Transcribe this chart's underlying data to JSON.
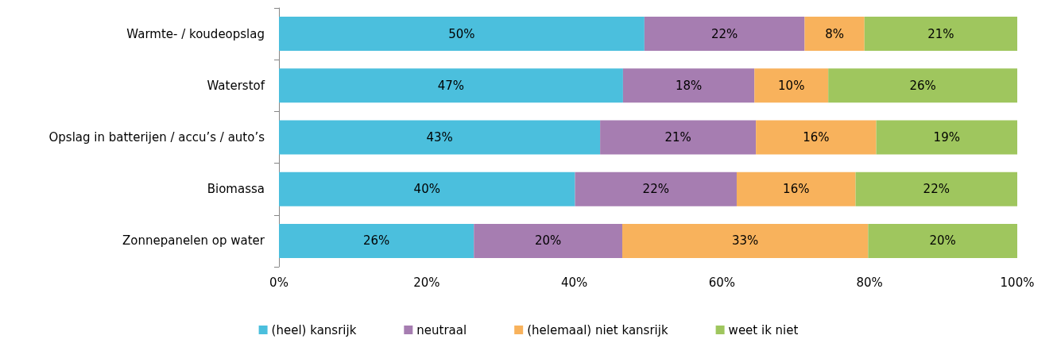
{
  "chart_data": {
    "type": "bar",
    "orientation": "horizontal",
    "stacked": true,
    "categories": [
      "Warmte- / koudeopslag",
      "Waterstof",
      "Opslag in batterijen / accu’s / auto’s",
      "Biomassa",
      "Zonnepanelen op water"
    ],
    "series": [
      {
        "name": "(heel) kansrijk",
        "color": "#4bbfdd",
        "values": [
          49.5,
          46.6,
          43.5,
          40.1,
          26.4
        ],
        "value_labels": [
          "50%",
          "47%",
          "43%",
          "40%",
          "26%"
        ]
      },
      {
        "name": "neutraal",
        "color": "#a67db1",
        "values": [
          21.7,
          17.8,
          21.1,
          21.9,
          20.1
        ],
        "value_labels": [
          "22%",
          "18%",
          "21%",
          "22%",
          "20%"
        ]
      },
      {
        "name": "(helemaal) niet kansrijk",
        "color": "#f8b25c",
        "values": [
          8.1,
          10.0,
          16.3,
          16.1,
          33.3
        ],
        "value_labels": [
          "8%",
          "10%",
          "16%",
          "16%",
          "33%"
        ]
      },
      {
        "name": "weet ik niet",
        "color": "#9fc65e",
        "values": [
          20.7,
          25.6,
          19.1,
          21.9,
          20.2
        ],
        "value_labels": [
          "21%",
          "26%",
          "19%",
          "22%",
          "20%"
        ]
      }
    ],
    "xlim": [
      0,
      100
    ],
    "xticks": [
      {
        "value": 0,
        "label": "0%"
      },
      {
        "value": 20,
        "label": "20%"
      },
      {
        "value": 40,
        "label": "40%"
      },
      {
        "value": 60,
        "label": "60%"
      },
      {
        "value": 80,
        "label": "80%"
      },
      {
        "value": 100,
        "label": "100%"
      }
    ],
    "grid": false,
    "legend": "bottom"
  }
}
